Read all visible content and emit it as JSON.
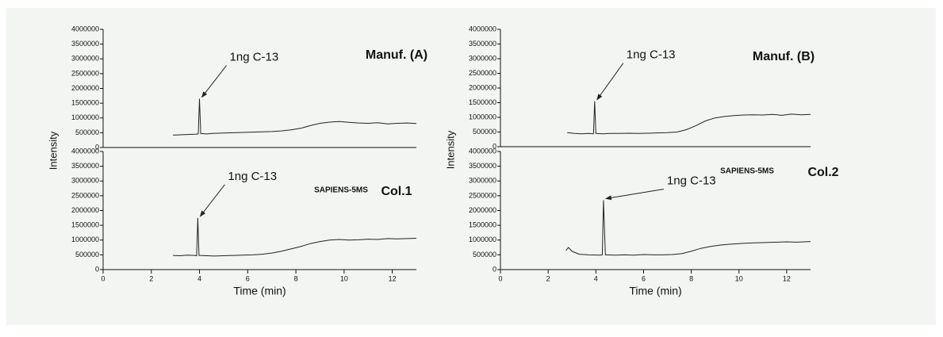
{
  "chart_data": [
    {
      "type": "line",
      "title": "Manuf. (A)",
      "ylabel": "Intensity",
      "annotation": "1ng C-13",
      "color": "#222222",
      "x": [
        2.9,
        3.2,
        3.5,
        3.8,
        3.95,
        4.0,
        4.05,
        4.3,
        4.6,
        5,
        5.4,
        5.8,
        6.2,
        6.6,
        7,
        7.4,
        7.8,
        8.2,
        8.6,
        9,
        9.4,
        9.8,
        10.2,
        10.6,
        11,
        11.4,
        11.8,
        12.2,
        12.6,
        13
      ],
      "values": [
        420000,
        430000,
        440000,
        450000,
        460000,
        1650000,
        470000,
        460000,
        480000,
        490000,
        500000,
        510000,
        520000,
        530000,
        540000,
        560000,
        600000,
        650000,
        740000,
        820000,
        860000,
        880000,
        850000,
        830000,
        820000,
        840000,
        800000,
        820000,
        830000,
        810000
      ],
      "xlim": [
        0,
        13
      ],
      "ylim": [
        0,
        4000000
      ],
      "yticks": [
        0,
        500000,
        1000000,
        1500000,
        2000000,
        2500000,
        3000000,
        3500000,
        4000000
      ]
    },
    {
      "type": "line",
      "title": "Col.1",
      "subtitle": "SAPIENS-5MS",
      "xlabel": "Time (min)",
      "annotation": "1ng C-13",
      "color": "#222222",
      "x": [
        2.9,
        3.2,
        3.5,
        3.8,
        3.88,
        3.93,
        3.98,
        4.3,
        4.6,
        5,
        5.4,
        5.8,
        6.2,
        6.6,
        7,
        7.4,
        7.8,
        8.2,
        8.6,
        9,
        9.4,
        9.8,
        10.2,
        10.6,
        11,
        11.4,
        11.8,
        12.2,
        12.6,
        13
      ],
      "values": [
        480000,
        470000,
        490000,
        480000,
        470000,
        1750000,
        480000,
        470000,
        460000,
        470000,
        480000,
        490000,
        500000,
        520000,
        560000,
        620000,
        700000,
        780000,
        880000,
        950000,
        1000000,
        1020000,
        1000000,
        1010000,
        1030000,
        1020000,
        1050000,
        1040000,
        1050000,
        1060000
      ],
      "xlim": [
        0,
        13
      ],
      "xticks": [
        0,
        2,
        4,
        6,
        8,
        10,
        12
      ],
      "ylim": [
        0,
        4000000
      ],
      "yticks": [
        0,
        500000,
        1000000,
        1500000,
        2000000,
        2500000,
        3000000,
        3500000,
        4000000
      ]
    },
    {
      "type": "line",
      "title": "Manuf. (B)",
      "ylabel": "Intensity",
      "annotation": "1ng C-13",
      "color": "#222222",
      "x": [
        2.8,
        3.1,
        3.4,
        3.7,
        3.9,
        3.95,
        4.0,
        4.3,
        4.6,
        5,
        5.4,
        5.8,
        6.2,
        6.6,
        7,
        7.4,
        7.8,
        8.2,
        8.6,
        9,
        9.4,
        9.8,
        10.2,
        10.6,
        11,
        11.4,
        11.8,
        12.2,
        12.6,
        13
      ],
      "values": [
        480000,
        450000,
        440000,
        450000,
        440000,
        1550000,
        450000,
        440000,
        450000,
        450000,
        460000,
        450000,
        460000,
        470000,
        480000,
        500000,
        580000,
        720000,
        880000,
        980000,
        1030000,
        1060000,
        1080000,
        1090000,
        1080000,
        1100000,
        1070000,
        1110000,
        1090000,
        1100000
      ],
      "xlim": [
        0,
        13
      ],
      "ylim": [
        0,
        4000000
      ],
      "yticks": [
        0,
        500000,
        1000000,
        1500000,
        2000000,
        2500000,
        3000000,
        3500000,
        4000000
      ]
    },
    {
      "type": "line",
      "title": "Col.2",
      "subtitle": "SAPIENS-5MS",
      "xlabel": "Time (min)",
      "annotation": "1ng C-13",
      "color": "#222222",
      "x": [
        2.75,
        2.85,
        3.0,
        3.3,
        3.7,
        4.2,
        4.27,
        4.32,
        4.4,
        4.8,
        5.2,
        5.6,
        6,
        6.4,
        6.8,
        7.2,
        7.6,
        8,
        8.4,
        8.8,
        9.2,
        9.6,
        10,
        10.4,
        10.8,
        11.2,
        11.6,
        12,
        12.4,
        13
      ],
      "values": [
        650000,
        750000,
        620000,
        520000,
        500000,
        490000,
        500000,
        2350000,
        500000,
        490000,
        500000,
        490000,
        510000,
        500000,
        500000,
        510000,
        540000,
        620000,
        720000,
        780000,
        830000,
        860000,
        880000,
        900000,
        910000,
        920000,
        930000,
        940000,
        930000,
        950000
      ],
      "xlim": [
        0,
        13
      ],
      "xticks": [
        0,
        2,
        4,
        6,
        8,
        10,
        12
      ],
      "ylim": [
        0,
        4000000
      ],
      "yticks": [
        0,
        500000,
        1000000,
        1500000,
        2000000,
        2500000,
        3000000,
        3500000,
        4000000
      ]
    }
  ]
}
